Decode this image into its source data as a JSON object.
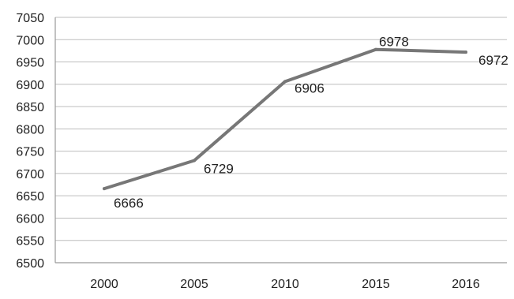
{
  "chart_data": {
    "type": "line",
    "categories": [
      "2000",
      "2005",
      "2010",
      "2015",
      "2016"
    ],
    "series": [
      {
        "values": [
          6666,
          6729,
          6906,
          6978,
          6972
        ],
        "data_labels": [
          "6666",
          "6729",
          "6906",
          "6978",
          "6972"
        ],
        "color": "#777777"
      }
    ],
    "ylim": [
      6500,
      7050
    ],
    "y_ticks": [
      6500,
      6550,
      6600,
      6650,
      6700,
      6750,
      6800,
      6850,
      6900,
      6950,
      7000,
      7050
    ],
    "y_tick_labels": [
      "6500",
      "6550",
      "6600",
      "6650",
      "6700",
      "6750",
      "6800",
      "6850",
      "6900",
      "6950",
      "7000",
      "7050"
    ],
    "grid": true,
    "legend": false,
    "title": "",
    "xlabel": "",
    "ylabel": "",
    "gridline_color": "#bdbdbd",
    "axis_color": "#9a9a9a"
  }
}
